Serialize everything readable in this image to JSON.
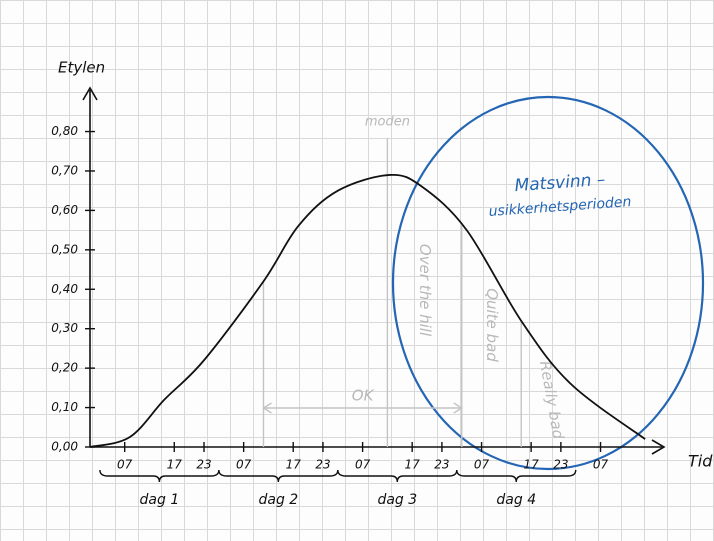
{
  "chart_data": {
    "type": "line",
    "y_label": "Etylen",
    "x_label": "Tid",
    "x": [
      0,
      8,
      15,
      23,
      35,
      42,
      50,
      60.5,
      67,
      76,
      87,
      97,
      112
    ],
    "values": [
      0,
      0.025,
      0.12,
      0.22,
      0.42,
      0.56,
      0.65,
      0.69,
      0.66,
      0.55,
      0.32,
      0.16,
      0.02
    ],
    "color": "#111111",
    "xlim": [
      0,
      115
    ],
    "ylim": [
      0,
      0.88
    ],
    "yticks": [
      {
        "value": 0,
        "label": "0,00"
      },
      {
        "value": 0.1,
        "label": "0,10"
      },
      {
        "value": 0.2,
        "label": "0,20"
      },
      {
        "value": 0.3,
        "label": "0,30"
      },
      {
        "value": 0.4,
        "label": "0,40"
      },
      {
        "value": 0.5,
        "label": "0,50"
      },
      {
        "value": 0.6,
        "label": "0,60"
      },
      {
        "value": 0.7,
        "label": "0,70"
      },
      {
        "value": 0.8,
        "label": "0,80"
      }
    ],
    "xticks": [
      {
        "value": 7,
        "label": "07"
      },
      17,
      23,
      {
        "value": 31,
        "label": "07"
      },
      {
        "value": 41,
        "label": "17"
      },
      {
        "value": 47,
        "label": "23"
      },
      {
        "value": 55,
        "label": "07"
      },
      {
        "value": 65,
        "label": "17"
      },
      {
        "value": 71,
        "label": "23"
      },
      {
        "value": 79,
        "label": "07"
      },
      {
        "value": 89,
        "label": "17"
      },
      {
        "value": 95,
        "label": "23"
      },
      {
        "value": 103,
        "label": "07"
      }
    ],
    "days": [
      "dag 1",
      "dag 2",
      "dag 3",
      "dag 4"
    ],
    "markers": [
      {
        "x": 35
      },
      {
        "x": 60,
        "label": "moden"
      },
      {
        "x": 75
      },
      {
        "x": 87
      }
    ],
    "zones": [
      "OK",
      "Over the hill",
      "Quite bad",
      "Really bad"
    ],
    "circle_text": [
      "Matsvinn –",
      "usikkerhetsperioden"
    ],
    "circle_color": "#2566b4"
  }
}
